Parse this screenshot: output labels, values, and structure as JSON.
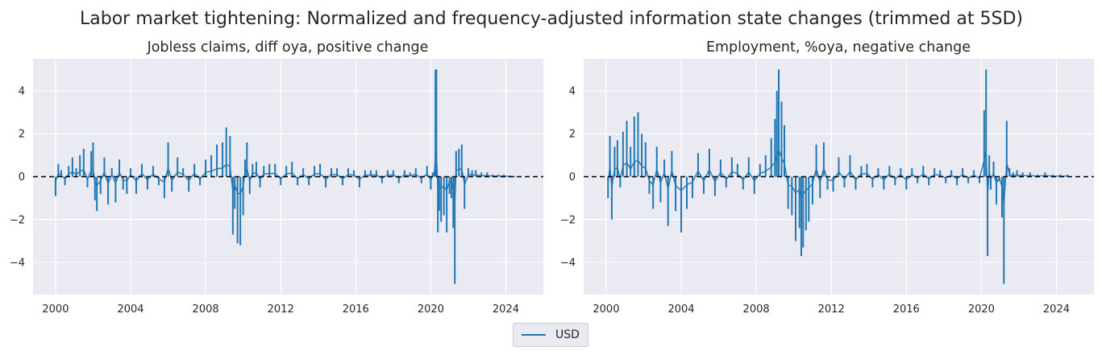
{
  "figure": {
    "title": "Labor market tightening: Normalized and frequency-adjusted information state changes (trimmed at 5SD)"
  },
  "legend": {
    "entries": [
      {
        "label": "USD",
        "color": "#1f77b4"
      }
    ],
    "placement": "bottom-center"
  },
  "chart_data": [
    {
      "type": "line",
      "title": "Jobless claims, diff oya, positive change",
      "xlabel": "",
      "ylabel": "",
      "xlim": [
        1998.8,
        2026.0
      ],
      "ylim": [
        -5.5,
        5.5
      ],
      "x_ticks": [
        2000,
        2004,
        2008,
        2012,
        2016,
        2020,
        2024
      ],
      "x_tick_labels": [
        "2000",
        "2004",
        "2008",
        "2012",
        "2016",
        "2020",
        "2024"
      ],
      "y_ticks": [
        -4,
        -2,
        0,
        2,
        4
      ],
      "y_tick_labels": [
        "−4",
        "−2",
        "0",
        "2",
        "4"
      ],
      "grid": true,
      "zero_line": {
        "value": 0,
        "style": "dashed",
        "color": "#000000"
      },
      "series": [
        {
          "name": "USD",
          "color": "#1f77b4",
          "style": "spike",
          "x": [
            2000.0,
            2000.15,
            2000.3,
            2000.5,
            2000.7,
            2000.9,
            2001.1,
            2001.3,
            2001.5,
            2001.7,
            2001.9,
            2002.0,
            2002.1,
            2002.2,
            2002.4,
            2002.6,
            2002.8,
            2003.0,
            2003.2,
            2003.4,
            2003.6,
            2003.8,
            2004.0,
            2004.3,
            2004.6,
            2004.9,
            2005.2,
            2005.5,
            2005.8,
            2006.0,
            2006.2,
            2006.5,
            2006.8,
            2007.1,
            2007.4,
            2007.7,
            2008.0,
            2008.3,
            2008.6,
            2008.9,
            2009.1,
            2009.3,
            2009.45,
            2009.55,
            2009.7,
            2009.85,
            2010.0,
            2010.1,
            2010.2,
            2010.35,
            2010.5,
            2010.7,
            2010.9,
            2011.1,
            2011.4,
            2011.7,
            2012.0,
            2012.3,
            2012.6,
            2012.9,
            2013.2,
            2013.5,
            2013.8,
            2014.1,
            2014.4,
            2014.7,
            2015.0,
            2015.3,
            2015.6,
            2015.9,
            2016.2,
            2016.5,
            2016.8,
            2017.1,
            2017.4,
            2017.7,
            2018.0,
            2018.3,
            2018.6,
            2018.9,
            2019.2,
            2019.5,
            2019.8,
            2020.0,
            2020.1,
            2020.2,
            2020.25,
            2020.3,
            2020.38,
            2020.45,
            2020.55,
            2020.7,
            2020.85,
            2021.0,
            2021.1,
            2021.2,
            2021.28,
            2021.35,
            2021.5,
            2021.65,
            2021.8,
            2022.0,
            2022.2,
            2022.4,
            2022.7,
            2023.0,
            2023.3,
            2023.6,
            2023.9,
            2024.2,
            2024.5
          ],
          "values": [
            -0.9,
            0.6,
            0.3,
            -0.4,
            0.5,
            0.9,
            0.4,
            1.0,
            1.3,
            -0.5,
            1.2,
            1.6,
            -1.1,
            -1.6,
            -0.8,
            0.9,
            -1.3,
            0.4,
            -1.2,
            0.8,
            -0.6,
            -0.8,
            0.4,
            -0.8,
            0.6,
            -0.6,
            0.5,
            -0.4,
            -1.0,
            1.6,
            -0.7,
            0.9,
            0.4,
            -0.7,
            0.6,
            -0.4,
            0.8,
            1.0,
            1.5,
            1.6,
            2.3,
            1.9,
            -2.7,
            -1.5,
            -3.1,
            -3.2,
            -1.8,
            0.8,
            1.6,
            -0.8,
            0.6,
            0.7,
            -0.5,
            0.5,
            0.6,
            0.6,
            -0.4,
            0.5,
            0.7,
            -0.4,
            0.4,
            -0.4,
            0.5,
            0.6,
            -0.5,
            0.4,
            0.4,
            -0.4,
            0.4,
            0.3,
            -0.5,
            0.3,
            0.3,
            0.3,
            -0.3,
            0.3,
            0.3,
            -0.3,
            0.3,
            0.2,
            0.4,
            -0.3,
            0.5,
            -0.6,
            0.2,
            0.3,
            5.0,
            5.0,
            -2.6,
            -1.6,
            -2.1,
            -1.8,
            -2.6,
            -0.8,
            -1.0,
            -2.4,
            -5.0,
            1.2,
            1.3,
            1.5,
            -1.5,
            0.4,
            0.3,
            0.3,
            0.2,
            0.2,
            0.1,
            0.1,
            0.1,
            0.05,
            0.0
          ]
        }
      ]
    },
    {
      "type": "line",
      "title": "Employment, %oya, negative change",
      "xlabel": "",
      "ylabel": "",
      "xlim": [
        1998.8,
        2026.0
      ],
      "ylim": [
        -5.5,
        5.5
      ],
      "x_ticks": [
        2000,
        2004,
        2008,
        2012,
        2016,
        2020,
        2024
      ],
      "x_tick_labels": [
        "2000",
        "2004",
        "2008",
        "2012",
        "2016",
        "2020",
        "2024"
      ],
      "y_ticks": [
        -4,
        -2,
        0,
        2,
        4
      ],
      "y_tick_labels": [
        "−4",
        "−2",
        "0",
        "2",
        "4"
      ],
      "grid": true,
      "zero_line": {
        "value": 0,
        "style": "dashed",
        "color": "#000000"
      },
      "series": [
        {
          "name": "USD",
          "color": "#1f77b4",
          "style": "spike",
          "x": [
            2000.1,
            2000.2,
            2000.3,
            2000.45,
            2000.6,
            2000.75,
            2000.9,
            2001.1,
            2001.3,
            2001.5,
            2001.7,
            2001.9,
            2002.1,
            2002.3,
            2002.5,
            2002.7,
            2002.9,
            2003.1,
            2003.3,
            2003.5,
            2003.7,
            2004.0,
            2004.3,
            2004.6,
            2004.9,
            2005.2,
            2005.5,
            2005.8,
            2006.1,
            2006.4,
            2006.7,
            2007.0,
            2007.3,
            2007.6,
            2007.9,
            2008.2,
            2008.5,
            2008.8,
            2009.0,
            2009.1,
            2009.2,
            2009.35,
            2009.5,
            2009.7,
            2009.9,
            2010.1,
            2010.3,
            2010.4,
            2010.5,
            2010.65,
            2010.8,
            2011.0,
            2011.2,
            2011.4,
            2011.6,
            2011.8,
            2012.1,
            2012.4,
            2012.7,
            2013.0,
            2013.3,
            2013.6,
            2013.9,
            2014.2,
            2014.5,
            2014.8,
            2015.1,
            2015.4,
            2015.7,
            2016.0,
            2016.3,
            2016.6,
            2016.9,
            2017.2,
            2017.5,
            2017.8,
            2018.1,
            2018.4,
            2018.7,
            2019.0,
            2019.3,
            2019.6,
            2019.9,
            2020.15,
            2020.25,
            2020.33,
            2020.42,
            2020.5,
            2020.65,
            2020.8,
            2020.95,
            2021.1,
            2021.2,
            2021.35,
            2021.5,
            2021.7,
            2021.9,
            2022.2,
            2022.6,
            2023.0,
            2023.4,
            2023.8,
            2024.2,
            2024.6
          ],
          "values": [
            -1.0,
            1.9,
            -2.0,
            1.4,
            1.7,
            -0.5,
            2.1,
            2.6,
            1.4,
            2.8,
            3.0,
            2.0,
            1.6,
            -0.8,
            -1.5,
            1.4,
            -1.2,
            0.8,
            -2.3,
            1.2,
            -1.6,
            -2.6,
            -1.5,
            -1.0,
            1.1,
            -0.8,
            1.3,
            -0.9,
            0.8,
            -0.5,
            0.9,
            0.6,
            -0.6,
            0.9,
            -0.8,
            0.6,
            1.0,
            1.8,
            2.7,
            4.0,
            5.0,
            3.5,
            2.4,
            -1.5,
            -1.8,
            -3.0,
            -2.4,
            -3.7,
            -3.3,
            -2.5,
            -2.1,
            -1.3,
            1.5,
            -1.0,
            1.6,
            -0.6,
            -0.7,
            0.9,
            -0.5,
            1.0,
            -0.6,
            0.5,
            0.6,
            -0.5,
            0.4,
            -0.6,
            0.5,
            -0.4,
            0.4,
            -0.6,
            0.4,
            -0.3,
            0.5,
            -0.4,
            0.4,
            0.3,
            -0.3,
            0.3,
            -0.4,
            0.4,
            -0.3,
            0.3,
            -0.3,
            3.1,
            5.0,
            -3.7,
            1.0,
            -0.6,
            0.7,
            -1.3,
            -0.2,
            -1.9,
            -5.0,
            2.6,
            0.4,
            0.2,
            0.3,
            0.2,
            0.2,
            0.1,
            0.2,
            0.1,
            0.1,
            0.1
          ]
        }
      ]
    }
  ]
}
